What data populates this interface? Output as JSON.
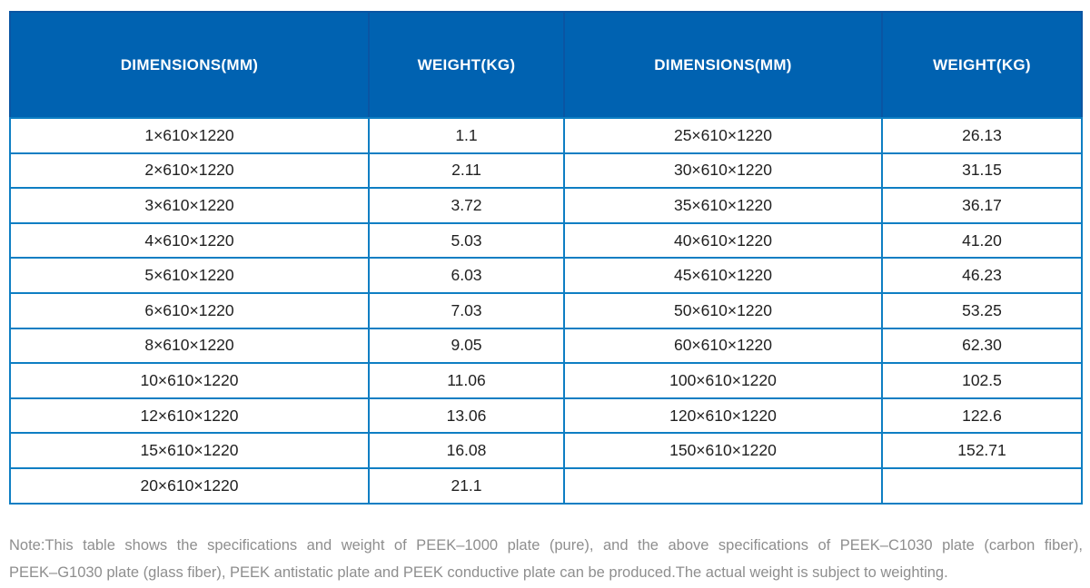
{
  "table": {
    "columns": [
      "DIMENSIONS(MM)",
      "WEIGHT(KG)",
      "DIMENSIONS(MM)",
      "WEIGHT(KG)"
    ],
    "rows": [
      [
        "1×610×1220",
        "1.1",
        "25×610×1220",
        "26.13"
      ],
      [
        "2×610×1220",
        "2.11",
        "30×610×1220",
        "31.15"
      ],
      [
        "3×610×1220",
        "3.72",
        "35×610×1220",
        "36.17"
      ],
      [
        "4×610×1220",
        "5.03",
        "40×610×1220",
        "41.20"
      ],
      [
        "5×610×1220",
        "6.03",
        "45×610×1220",
        "46.23"
      ],
      [
        "6×610×1220",
        "7.03",
        "50×610×1220",
        "53.25"
      ],
      [
        "8×610×1220",
        "9.05",
        "60×610×1220",
        "62.30"
      ],
      [
        "10×610×1220",
        "11.06",
        "100×610×1220",
        "102.5"
      ],
      [
        "12×610×1220",
        "13.06",
        "120×610×1220",
        "122.6"
      ],
      [
        "15×610×1220",
        "16.08",
        "150×610×1220",
        "152.71"
      ],
      [
        "20×610×1220",
        "21.1",
        "",
        ""
      ]
    ]
  },
  "note": {
    "line1": "Note:This table shows the specifications and weight of PEEK–1000 plate (pure), and the above specifications of PEEK–C1030 plate (carbon fiber),",
    "line2": "PEEK–G1030 plate (glass fiber), PEEK antistatic plate and PEEK conductive plate can be produced.The actual weight is subject to weighting."
  },
  "colors": {
    "header_bg": "#0062b1",
    "header_divider": "#0a55a3",
    "outer_border": "#0a55a3",
    "grid_line": "#0e7ec3",
    "cell_text": "#212121",
    "note_text": "#8e8e8e"
  }
}
